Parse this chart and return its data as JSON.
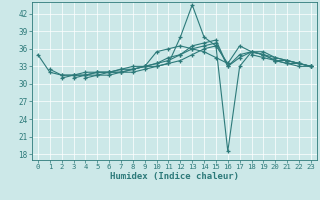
{
  "xlabel": "Humidex (Indice chaleur)",
  "bg_color": "#cce8e8",
  "line_color": "#2d7a7a",
  "xlim": [
    -0.5,
    23.5
  ],
  "ylim": [
    17,
    44
  ],
  "yticks": [
    18,
    21,
    24,
    27,
    30,
    33,
    36,
    39,
    42
  ],
  "xticks": [
    0,
    1,
    2,
    3,
    4,
    5,
    6,
    7,
    8,
    9,
    10,
    11,
    12,
    13,
    14,
    15,
    16,
    17,
    18,
    19,
    20,
    21,
    22,
    23
  ],
  "lines": [
    [
      35.0,
      32.0,
      31.5,
      31.5,
      31.5,
      31.5,
      32.0,
      32.0,
      32.5,
      33.0,
      33.5,
      34.0,
      35.0,
      36.5,
      37.0,
      37.5,
      33.0,
      35.0,
      35.5,
      35.0,
      34.0,
      33.5,
      33.0,
      33.0
    ],
    [
      null,
      32.5,
      31.5,
      31.5,
      32.0,
      32.0,
      32.0,
      32.5,
      32.5,
      33.0,
      33.0,
      33.5,
      38.0,
      43.5,
      38.0,
      36.5,
      18.5,
      33.0,
      35.5,
      35.5,
      34.5,
      34.0,
      33.5,
      33.0
    ],
    [
      null,
      null,
      31.0,
      31.5,
      31.5,
      32.0,
      32.0,
      32.5,
      33.0,
      33.0,
      35.5,
      36.0,
      36.5,
      36.0,
      35.5,
      34.5,
      33.5,
      null,
      35.0,
      34.5,
      34.0,
      34.0,
      33.5,
      33.0
    ],
    [
      null,
      null,
      null,
      31.0,
      31.5,
      32.0,
      32.0,
      32.0,
      32.5,
      33.0,
      33.5,
      34.5,
      35.0,
      36.0,
      36.5,
      37.0,
      33.0,
      34.5,
      35.5,
      35.0,
      34.0,
      33.5,
      33.5,
      33.0
    ],
    [
      null,
      null,
      null,
      null,
      31.0,
      31.5,
      31.5,
      32.0,
      32.0,
      32.5,
      33.0,
      33.5,
      34.0,
      35.0,
      36.0,
      36.5,
      33.5,
      36.5,
      35.5,
      35.0,
      34.5,
      34.0,
      33.5,
      33.0
    ]
  ]
}
